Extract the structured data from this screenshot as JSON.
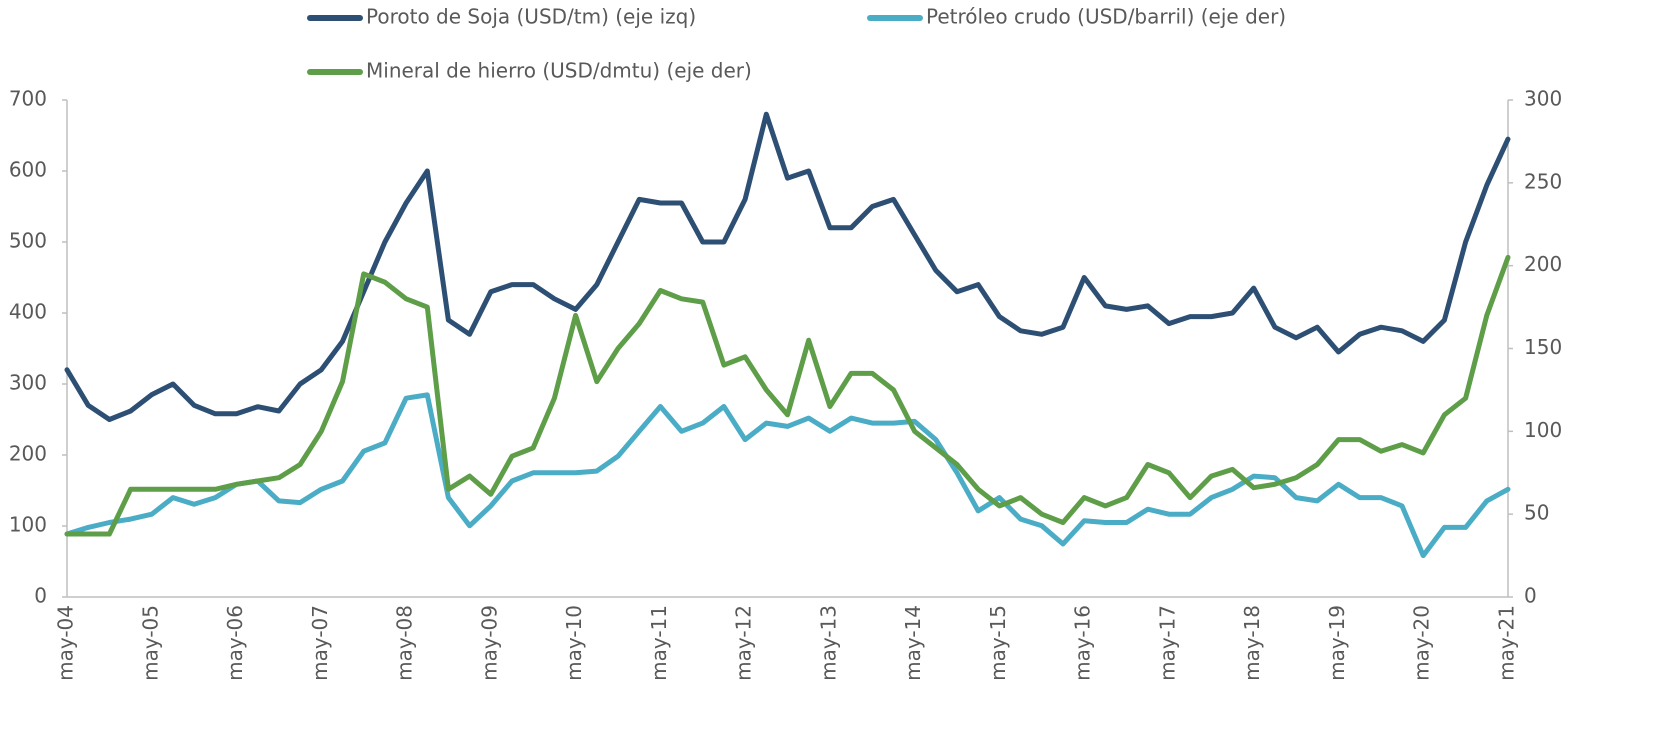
{
  "chart_data": {
    "type": "line",
    "categories": [
      "may-04",
      null,
      null,
      null,
      "may-05",
      null,
      null,
      null,
      "may-06",
      null,
      null,
      null,
      "may-07",
      null,
      null,
      null,
      "may-08",
      null,
      null,
      null,
      "may-09",
      null,
      null,
      null,
      "may-10",
      null,
      null,
      null,
      "may-11",
      null,
      null,
      null,
      "may-12",
      null,
      null,
      null,
      "may-13",
      null,
      null,
      null,
      "may-14",
      null,
      null,
      null,
      "may-15",
      null,
      null,
      null,
      "may-16",
      null,
      null,
      null,
      "may-17",
      null,
      null,
      null,
      "may-18",
      null,
      null,
      null,
      "may-19",
      null,
      null,
      null,
      "may-20",
      null,
      null,
      null,
      "may-21"
    ],
    "series": [
      {
        "name": "Poroto de Soja (USD/tm) (eje izq)",
        "color": "#2e4f74",
        "axis": "y",
        "values": [
          320,
          270,
          250,
          262,
          285,
          300,
          270,
          258,
          258,
          268,
          262,
          300,
          320,
          360,
          430,
          500,
          555,
          600,
          390,
          370,
          430,
          440,
          440,
          420,
          405,
          440,
          500,
          560,
          555,
          555,
          500,
          500,
          560,
          680,
          590,
          600,
          520,
          520,
          550,
          560,
          510,
          460,
          430,
          440,
          395,
          375,
          370,
          380,
          450,
          410,
          405,
          410,
          385,
          395,
          395,
          400,
          435,
          380,
          365,
          380,
          345,
          370,
          380,
          375,
          360,
          390,
          500,
          580,
          645
        ]
      },
      {
        "name": "Petróleo crudo (USD/barril) (eje der)",
        "color": "#4bacc6",
        "axis": "y2",
        "values": [
          38,
          42,
          45,
          47,
          50,
          60,
          56,
          60,
          68,
          70,
          58,
          57,
          65,
          70,
          88,
          93,
          120,
          122,
          60,
          43,
          55,
          70,
          75,
          75,
          75,
          76,
          85,
          100,
          115,
          100,
          105,
          115,
          95,
          105,
          103,
          108,
          100,
          108,
          105,
          105,
          106,
          95,
          75,
          52,
          60,
          47,
          43,
          32,
          46,
          45,
          45,
          53,
          50,
          50,
          60,
          65,
          73,
          72,
          60,
          58,
          68,
          60,
          60,
          55,
          25,
          42,
          42,
          58,
          65
        ]
      },
      {
        "name": "Mineral de hierro (USD/dmtu) (eje der)",
        "color": "#5e9e48",
        "axis": "y2",
        "values": [
          38,
          38,
          38,
          65,
          65,
          65,
          65,
          65,
          68,
          70,
          72,
          80,
          100,
          130,
          195,
          190,
          180,
          175,
          65,
          73,
          62,
          85,
          90,
          120,
          170,
          130,
          150,
          165,
          185,
          180,
          178,
          140,
          145,
          125,
          110,
          155,
          115,
          135,
          135,
          125,
          100,
          90,
          80,
          65,
          55,
          60,
          50,
          45,
          60,
          55,
          60,
          80,
          75,
          60,
          73,
          77,
          66,
          68,
          72,
          80,
          95,
          95,
          88,
          92,
          87,
          110,
          120,
          170,
          205
        ]
      }
    ],
    "ylim": [
      0,
      700
    ],
    "yticks": [
      0,
      100,
      200,
      300,
      400,
      500,
      600,
      700
    ],
    "y2lim": [
      0,
      300
    ],
    "y2ticks": [
      0,
      50,
      100,
      150,
      200,
      250,
      300
    ],
    "grid": false
  }
}
